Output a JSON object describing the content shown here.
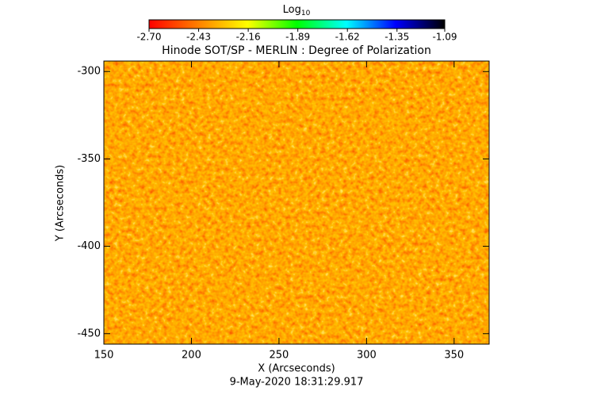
{
  "chart_data": {
    "type": "image",
    "title": "Hinode SOT/SP - MERLIN : Degree of Polarization",
    "x_label": "X (Arcseconds)",
    "y_label": "Y (Arcseconds)",
    "footer": "9-May-2020 18:31:29.917",
    "colorbar_label": "Log",
    "colorbar_label_sub": "10",
    "colormap": [
      "#ff0000",
      "#ff8000",
      "#ffff00",
      "#00ff00",
      "#00ffff",
      "#0000ff",
      "#000000"
    ],
    "clim": [
      -2.7,
      -1.09
    ],
    "cticks": [
      {
        "value": -2.7,
        "label": "-2.70"
      },
      {
        "value": -2.43,
        "label": "-2.43"
      },
      {
        "value": -2.16,
        "label": "-2.16"
      },
      {
        "value": -1.89,
        "label": "-1.89"
      },
      {
        "value": -1.62,
        "label": "-1.62"
      },
      {
        "value": -1.35,
        "label": "-1.35"
      },
      {
        "value": -1.09,
        "label": "-1.09"
      }
    ],
    "xlim": [
      150,
      370
    ],
    "xticks": [
      150,
      200,
      250,
      300,
      350
    ],
    "ylim": [
      -456,
      -294
    ],
    "yticks": [
      -450,
      -400,
      -350,
      -300
    ]
  }
}
